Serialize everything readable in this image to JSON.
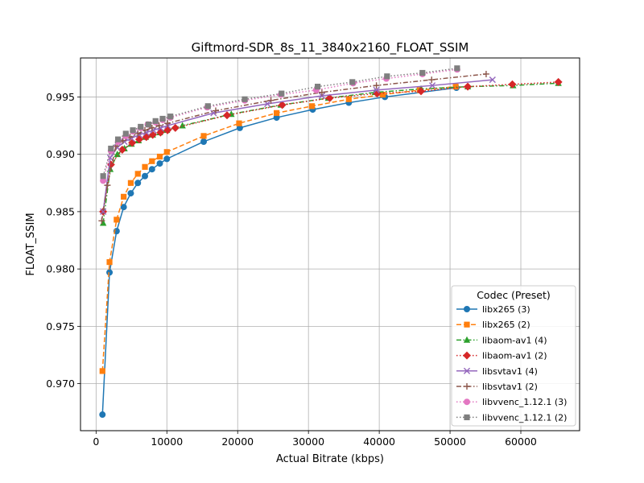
{
  "chart_data": {
    "type": "line",
    "title": "Giftmord-SDR_8s_11_3840x2160_FLOAT_SSIM",
    "xlabel": "Actual Bitrate (kbps)",
    "ylabel": "FLOAT_SSIM",
    "xlim": [
      -2200,
      68300
    ],
    "ylim": [
      0.9659,
      0.9984
    ],
    "xticks": [
      0,
      10000,
      20000,
      30000,
      40000,
      50000,
      60000
    ],
    "xtick_labels": [
      "0",
      "10000",
      "20000",
      "30000",
      "40000",
      "50000",
      "60000"
    ],
    "yticks": [
      0.97,
      0.975,
      0.98,
      0.985,
      0.99,
      0.995
    ],
    "ytick_labels": [
      "0.970",
      "0.975",
      "0.980",
      "0.985",
      "0.990",
      "0.995"
    ],
    "grid": true,
    "legend_title": "Codec (Preset)",
    "legend_position": "lower-right",
    "series": [
      {
        "name": "libx265 (3)",
        "color": "#1f77b4",
        "marker": "circle",
        "dash": "solid",
        "points": [
          [
            900,
            0.9673
          ],
          [
            1900,
            0.9797
          ],
          [
            2900,
            0.9833
          ],
          [
            3900,
            0.9854
          ],
          [
            4900,
            0.9866
          ],
          [
            5900,
            0.9875
          ],
          [
            6900,
            0.9881
          ],
          [
            7900,
            0.9887
          ],
          [
            9000,
            0.9892
          ],
          [
            10000,
            0.9896
          ],
          [
            15200,
            0.9911
          ],
          [
            20300,
            0.9923
          ],
          [
            25500,
            0.9932
          ],
          [
            30600,
            0.9939
          ],
          [
            35700,
            0.9945
          ],
          [
            40800,
            0.995
          ],
          [
            50900,
            0.9958
          ]
        ]
      },
      {
        "name": "libx265 (2)",
        "color": "#ff7f0e",
        "marker": "square",
        "dash": "dashed",
        "points": [
          [
            900,
            0.9711
          ],
          [
            1900,
            0.9806
          ],
          [
            2900,
            0.9843
          ],
          [
            3900,
            0.9863
          ],
          [
            4900,
            0.9875
          ],
          [
            5900,
            0.9883
          ],
          [
            6900,
            0.9889
          ],
          [
            7900,
            0.9894
          ],
          [
            9000,
            0.9898
          ],
          [
            10000,
            0.9902
          ],
          [
            15200,
            0.9916
          ],
          [
            20200,
            0.9927
          ],
          [
            25500,
            0.9936
          ],
          [
            30500,
            0.9942
          ],
          [
            35700,
            0.9948
          ],
          [
            40500,
            0.9952
          ],
          [
            45700,
            0.9956
          ],
          [
            50800,
            0.9959
          ]
        ]
      },
      {
        "name": "libaom-av1 (4)",
        "color": "#2ca02c",
        "marker": "triangle",
        "dash": "dashdot",
        "points": [
          [
            1000,
            0.984
          ],
          [
            2000,
            0.9887
          ],
          [
            3000,
            0.99
          ],
          [
            4000,
            0.9905
          ],
          [
            5000,
            0.9909
          ],
          [
            6000,
            0.9912
          ],
          [
            7000,
            0.9915
          ],
          [
            8000,
            0.9917
          ],
          [
            9000,
            0.9919
          ],
          [
            10000,
            0.9921
          ],
          [
            12200,
            0.9925
          ],
          [
            19100,
            0.9935
          ],
          [
            26100,
            0.9943
          ],
          [
            32800,
            0.9949
          ],
          [
            39400,
            0.9954
          ],
          [
            45900,
            0.9957
          ],
          [
            52500,
            0.9959
          ],
          [
            58900,
            0.996
          ],
          [
            65300,
            0.9962
          ]
        ]
      },
      {
        "name": "libaom-av1 (2)",
        "color": "#d62728",
        "marker": "diamond",
        "dash": "dotted",
        "points": [
          [
            1000,
            0.985
          ],
          [
            2100,
            0.9891
          ],
          [
            3700,
            0.9904
          ],
          [
            5100,
            0.991
          ],
          [
            6100,
            0.9913
          ],
          [
            7100,
            0.9915
          ],
          [
            8000,
            0.9917
          ],
          [
            9100,
            0.9919
          ],
          [
            10100,
            0.9921
          ],
          [
            11200,
            0.9923
          ],
          [
            18500,
            0.9934
          ],
          [
            26300,
            0.9943
          ],
          [
            33000,
            0.9949
          ],
          [
            39700,
            0.9953
          ],
          [
            45900,
            0.9955
          ],
          [
            52500,
            0.9959
          ],
          [
            58800,
            0.9961
          ],
          [
            65300,
            0.9963
          ]
        ]
      },
      {
        "name": "libsvtav1 (4)",
        "color": "#9467bd",
        "marker": "x",
        "dash": "solid",
        "points": [
          [
            1000,
            0.985
          ],
          [
            2000,
            0.9897
          ],
          [
            3000,
            0.9906
          ],
          [
            4000,
            0.9911
          ],
          [
            5000,
            0.9914
          ],
          [
            6100,
            0.9917
          ],
          [
            7100,
            0.9919
          ],
          [
            8100,
            0.9921
          ],
          [
            9100,
            0.9923
          ],
          [
            10100,
            0.9925
          ],
          [
            16600,
            0.9936
          ],
          [
            24200,
            0.9944
          ],
          [
            31900,
            0.9951
          ],
          [
            39600,
            0.9956
          ],
          [
            47500,
            0.996
          ],
          [
            56000,
            0.9965
          ]
        ]
      },
      {
        "name": "libsvtav1 (2)",
        "color": "#8c564b",
        "marker": "plus",
        "dash": "dashdot",
        "points": [
          [
            800,
            0.9842
          ],
          [
            1600,
            0.9873
          ],
          [
            2800,
            0.9907
          ],
          [
            3800,
            0.9912
          ],
          [
            4800,
            0.9915
          ],
          [
            5900,
            0.9918
          ],
          [
            6900,
            0.9921
          ],
          [
            7900,
            0.9923
          ],
          [
            8900,
            0.9925
          ],
          [
            10100,
            0.9927
          ],
          [
            16900,
            0.9938
          ],
          [
            24700,
            0.9947
          ],
          [
            31900,
            0.9954
          ],
          [
            39600,
            0.996
          ],
          [
            47400,
            0.9965
          ],
          [
            55100,
            0.997
          ]
        ]
      },
      {
        "name": "libvvenc_1.12.1 (3)",
        "color": "#e377c2",
        "marker": "circle",
        "dash": "dotted",
        "points": [
          [
            1000,
            0.9877
          ],
          [
            2100,
            0.9903
          ],
          [
            3100,
            0.9911
          ],
          [
            4200,
            0.9916
          ],
          [
            5200,
            0.992
          ],
          [
            6300,
            0.9923
          ],
          [
            7300,
            0.9926
          ],
          [
            8400,
            0.9928
          ],
          [
            9400,
            0.993
          ],
          [
            10500,
            0.9932
          ],
          [
            15700,
            0.9941
          ],
          [
            21000,
            0.9947
          ],
          [
            26100,
            0.9952
          ],
          [
            31100,
            0.9956
          ],
          [
            36300,
            0.9962
          ],
          [
            41000,
            0.9966
          ],
          [
            46100,
            0.997
          ],
          [
            51000,
            0.9974
          ]
        ]
      },
      {
        "name": "libvvenc_1.12.1 (2)",
        "color": "#7f7f7f",
        "marker": "square",
        "dash": "dotted",
        "points": [
          [
            1000,
            0.9881
          ],
          [
            2100,
            0.9905
          ],
          [
            3100,
            0.9913
          ],
          [
            4200,
            0.9918
          ],
          [
            5200,
            0.9921
          ],
          [
            6300,
            0.9924
          ],
          [
            7400,
            0.9926
          ],
          [
            8400,
            0.9929
          ],
          [
            9400,
            0.9931
          ],
          [
            10500,
            0.9933
          ],
          [
            15800,
            0.9942
          ],
          [
            21000,
            0.9948
          ],
          [
            26200,
            0.9953
          ],
          [
            31300,
            0.9959
          ],
          [
            36200,
            0.9963
          ],
          [
            41100,
            0.9968
          ],
          [
            46100,
            0.9971
          ],
          [
            51000,
            0.9975
          ]
        ]
      }
    ]
  }
}
